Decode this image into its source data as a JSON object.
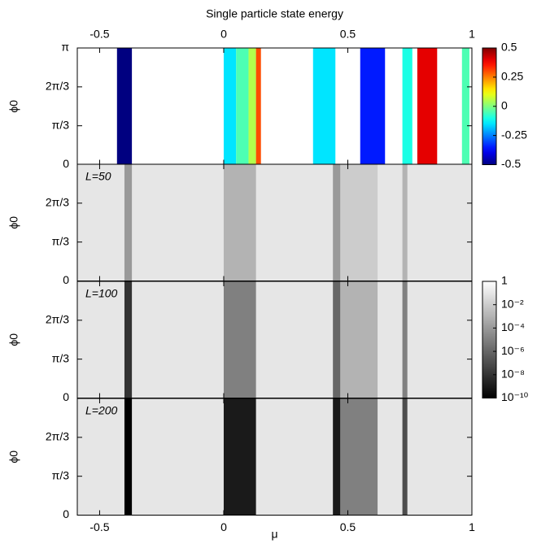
{
  "chart_data": [
    {
      "type": "band-map",
      "title": "Single particle state energy",
      "colormap": "jet",
      "xlim": [
        -0.59,
        1.0
      ],
      "xticks": [
        -0.5,
        0,
        0.5,
        1
      ],
      "ylim": [
        0,
        3.1416
      ],
      "ylabel": "ϕ0",
      "yticks": [
        0,
        {
          "value": 1.0472,
          "label": "π/3"
        },
        {
          "value": 2.0944,
          "label": "2π/3"
        },
        {
          "value": 3.1416,
          "label": "π"
        }
      ],
      "clim": [
        -0.5,
        0.5
      ],
      "cticks": [
        -0.5,
        -0.25,
        0,
        0.25,
        0.5
      ],
      "bands": [
        {
          "x": [
            -0.43,
            -0.37
          ],
          "value": -0.5
        },
        {
          "x": [
            0,
            0.05
          ],
          "value": -0.15
        },
        {
          "x": [
            0.05,
            0.1
          ],
          "value": -0.05
        },
        {
          "x": [
            0.1,
            0.13
          ],
          "value": 0.05
        },
        {
          "x": [
            0.13,
            0.15
          ],
          "value": 0.3
        },
        {
          "x": [
            0.36,
            0.45
          ],
          "value": -0.15
        },
        {
          "x": [
            0.55,
            0.65
          ],
          "value": -0.35
        },
        {
          "x": [
            0.72,
            0.76
          ],
          "value": -0.1
        },
        {
          "x": [
            0.78,
            0.86
          ],
          "value": 0.4
        },
        {
          "x": [
            0.96,
            0.99
          ],
          "value": -0.05
        }
      ]
    },
    {
      "type": "density-map",
      "label": "L=50",
      "colormap": "gray",
      "background": 0.1,
      "xlim": [
        -0.59,
        1.0
      ],
      "ylim": [
        0,
        3.1416
      ],
      "ylabel": "ϕ0",
      "yticks": [
        0,
        {
          "value": 1.0472,
          "label": "π/3"
        },
        {
          "value": 2.0944,
          "label": "2π/3"
        }
      ],
      "bands": [
        {
          "x": [
            -0.4,
            -0.37
          ],
          "value": 0.0001
        },
        {
          "x": [
            0,
            0.13
          ],
          "value": 0.001
        },
        {
          "x": [
            0.44,
            0.47
          ],
          "value": 0.0001
        },
        {
          "x": [
            0.47,
            0.62
          ],
          "value": 0.01
        },
        {
          "x": [
            0.72,
            0.74
          ],
          "value": 0.001
        }
      ]
    },
    {
      "type": "density-map",
      "label": "L=100",
      "colormap": "gray",
      "background": 0.1,
      "xlim": [
        -0.59,
        1.0
      ],
      "ylim": [
        0,
        3.1416
      ],
      "ylabel": "ϕ0",
      "yticks": [
        0,
        {
          "value": 1.0472,
          "label": "π/3"
        },
        {
          "value": 2.0944,
          "label": "2π/3"
        }
      ],
      "clim": [
        1e-10,
        1
      ],
      "cticks": [
        1,
        {
          "value": 0.01,
          "label": "10⁻²"
        },
        {
          "value": 0.0001,
          "label": "10⁻⁴"
        },
        {
          "value": 1e-06,
          "label": "10⁻⁶"
        },
        {
          "value": 1e-08,
          "label": "10⁻⁸"
        },
        {
          "value": 1e-10,
          "label": "10⁻¹⁰"
        }
      ],
      "bands": [
        {
          "x": [
            -0.4,
            -0.37
          ],
          "value": 1e-08
        },
        {
          "x": [
            0,
            0.13
          ],
          "value": 1e-05
        },
        {
          "x": [
            0.44,
            0.47
          ],
          "value": 1e-06
        },
        {
          "x": [
            0.47,
            0.62
          ],
          "value": 0.001
        },
        {
          "x": [
            0.72,
            0.74
          ],
          "value": 1e-05
        }
      ]
    },
    {
      "type": "density-map",
      "label": "L=200",
      "colormap": "gray",
      "background": 0.1,
      "xlim": [
        -0.59,
        1.0
      ],
      "xticks": [
        -0.5,
        0,
        0.5,
        1
      ],
      "xlabel": "μ",
      "ylim": [
        0,
        3.1416
      ],
      "ylabel": "ϕ0",
      "yticks": [
        0,
        {
          "value": 1.0472,
          "label": "π/3"
        },
        {
          "value": 2.0944,
          "label": "2π/3"
        }
      ],
      "bands": [
        {
          "x": [
            -0.4,
            -0.37
          ],
          "value": 1e-10
        },
        {
          "x": [
            0,
            0.13
          ],
          "value": 1e-09
        },
        {
          "x": [
            0.44,
            0.47
          ],
          "value": 1e-09
        },
        {
          "x": [
            0.47,
            0.62
          ],
          "value": 1e-05
        },
        {
          "x": [
            0.72,
            0.74
          ],
          "value": 1e-07
        }
      ]
    }
  ]
}
